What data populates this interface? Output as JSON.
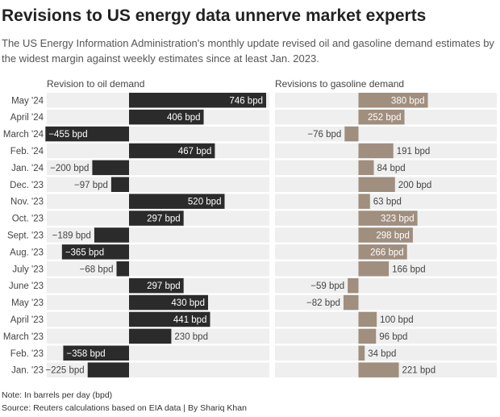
{
  "title": "Revisions to US energy data unnerve market experts",
  "subtitle": "The US Energy Information Administration's monthly update revised oil and gasoline demand estimates by the widest margin against weekly estimates since at least Jan. 2023.",
  "note": "Note: In barrels per day (bpd)",
  "source": "Source: Reuters calculations based on EIA data | By Shariq Khan",
  "colors": {
    "oil_bar": "#2b2b2b",
    "gasoline_bar": "#a08e7e",
    "row_band": "#efefef",
    "label_on_dark": "#ffffff",
    "label_outside": "#444444"
  },
  "chart_data": [
    {
      "type": "bar",
      "orientation": "horizontal",
      "title": "Revision to oil demand",
      "unit": "bpd",
      "categories": [
        "May '24",
        "April '24",
        "March '24",
        "Feb. '24",
        "Jan. '24",
        "Dec. '23",
        "Nov. '23",
        "Oct. '23",
        "Sept. '23",
        "Aug. '23",
        "July '23",
        "June '23",
        "May '23",
        "April '23",
        "March '23",
        "Feb. '23",
        "Jan. '23"
      ],
      "values": [
        746,
        406,
        -455,
        467,
        -200,
        -97,
        520,
        297,
        -189,
        -365,
        -68,
        297,
        430,
        441,
        230,
        -358,
        -225
      ],
      "labels": [
        "746 bpd",
        "406 bpd",
        "−455 bpd",
        "467 bpd",
        "−200 bpd",
        "−97 bpd",
        "520 bpd",
        "297 bpd",
        "−189 bpd",
        "−365 bpd",
        "−68 bpd",
        "297 bpd",
        "430 bpd",
        "441 bpd",
        "230 bpd",
        "−358 bpd",
        "−225 bpd"
      ]
    },
    {
      "type": "bar",
      "orientation": "horizontal",
      "title": "Revisions to gasoline demand",
      "unit": "bpd",
      "categories": [
        "May '24",
        "April '24",
        "March '24",
        "Feb. '24",
        "Jan. '24",
        "Dec. '23",
        "Nov. '23",
        "Oct. '23",
        "Sept. '23",
        "Aug. '23",
        "July '23",
        "June '23",
        "May '23",
        "April '23",
        "March '23",
        "Feb. '23",
        "Jan. '23"
      ],
      "values": [
        380,
        252,
        -76,
        191,
        84,
        200,
        63,
        323,
        298,
        266,
        166,
        -59,
        -82,
        100,
        96,
        34,
        221
      ],
      "labels": [
        "380 bpd",
        "252 bpd",
        "−76 bpd",
        "191 bpd",
        "84 bpd",
        "200 bpd",
        "63 bpd",
        "323 bpd",
        "298 bpd",
        "266 bpd",
        "166 bpd",
        "−59 bpd",
        "−82 bpd",
        "100 bpd",
        "96 bpd",
        "34 bpd",
        "221 bpd"
      ]
    }
  ]
}
